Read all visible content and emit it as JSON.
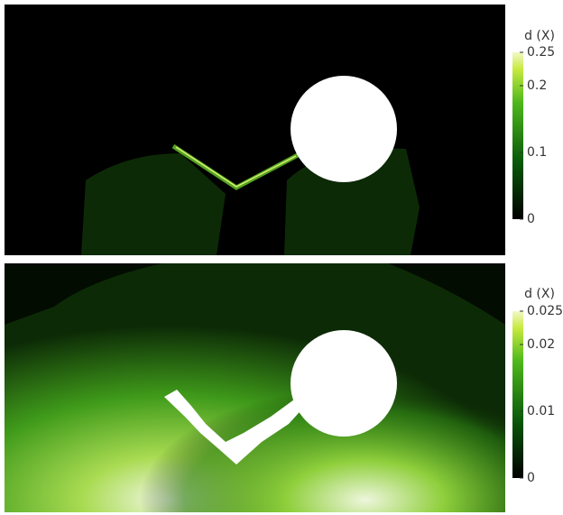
{
  "panels": [
    {
      "colorbar": {
        "title": "d (X)",
        "range": [
          0,
          0.25
        ],
        "ticks": [
          0.25,
          0.2,
          0.1,
          0
        ]
      }
    },
    {
      "colorbar": {
        "title": "d (X)",
        "range": [
          0,
          0.025
        ],
        "ticks": [
          0.025,
          0.02,
          0.01,
          0
        ]
      }
    }
  ]
}
